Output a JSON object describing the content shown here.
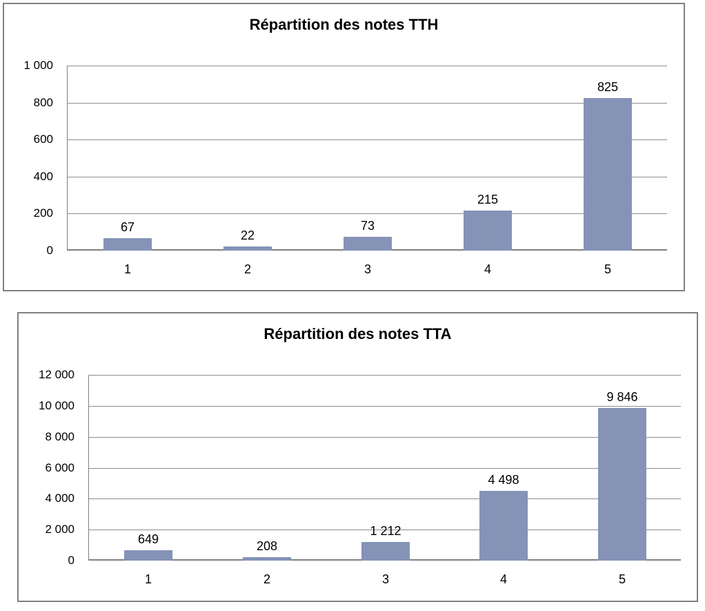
{
  "colors": {
    "bar_fill": "#8593B7",
    "gridline": "#8C8C8C",
    "axis": "#808080",
    "box_border": "#808080",
    "text": "#000000",
    "background": "#FFFFFF"
  },
  "chart_data": [
    {
      "type": "bar",
      "title": "Répartition des notes TTH",
      "categories": [
        "1",
        "2",
        "3",
        "4",
        "5"
      ],
      "values": [
        67,
        22,
        73,
        215,
        825
      ],
      "value_labels": [
        "67",
        "22",
        "73",
        "215",
        "825"
      ],
      "xlabel": "",
      "ylabel": "",
      "ylim": [
        0,
        1000
      ],
      "y_tick_step": 200,
      "y_tick_labels": [
        "1 000",
        "800",
        "600",
        "400",
        "200",
        "0"
      ],
      "grid": true,
      "legend": "none",
      "bar_color": "#8593B7"
    },
    {
      "type": "bar",
      "title": "Répartition des notes TTA",
      "categories": [
        "1",
        "2",
        "3",
        "4",
        "5"
      ],
      "values": [
        649,
        208,
        1212,
        4498,
        9846
      ],
      "value_labels": [
        "649",
        "208",
        "1 212",
        "4 498",
        "9 846"
      ],
      "xlabel": "",
      "ylabel": "",
      "ylim": [
        0,
        12000
      ],
      "y_tick_step": 2000,
      "y_tick_labels": [
        "12 000",
        "10 000",
        "8 000",
        "6 000",
        "4 000",
        "2 000",
        "0"
      ],
      "grid": true,
      "legend": "none",
      "bar_color": "#8593B7"
    }
  ]
}
